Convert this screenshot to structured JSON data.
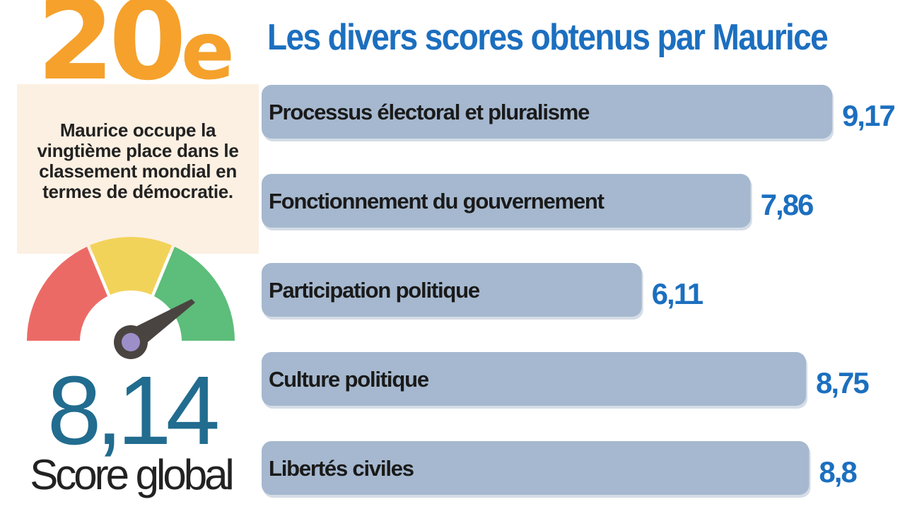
{
  "rank": {
    "number": "20",
    "suffix": "e"
  },
  "rank_text": "Maurice occupe la vingtième place dans le classement mondial en termes de démocratie.",
  "global_score": {
    "value": "8,14",
    "label": "Score global"
  },
  "colors": {
    "bar": "#a5b8cf",
    "value": "#1c6fbf",
    "accent": "#f5a12c",
    "score": "#216c8f",
    "gauge": [
      "#ec6a66",
      "#f2d35a",
      "#5dbd7a"
    ]
  },
  "chart_data": {
    "type": "bar",
    "orientation": "horizontal",
    "title": "Les divers scores obtenus par Maurice",
    "categories": [
      "Processus électoral et pluralisme",
      "Fonctionnement du gouvernement",
      "Participation politique",
      "Culture politique",
      "Libertés civiles"
    ],
    "values": [
      9.17,
      7.86,
      6.11,
      8.75,
      8.8
    ],
    "value_labels": [
      "9,17",
      "7,86",
      "6,11",
      "8,75",
      "8,8"
    ]
  }
}
